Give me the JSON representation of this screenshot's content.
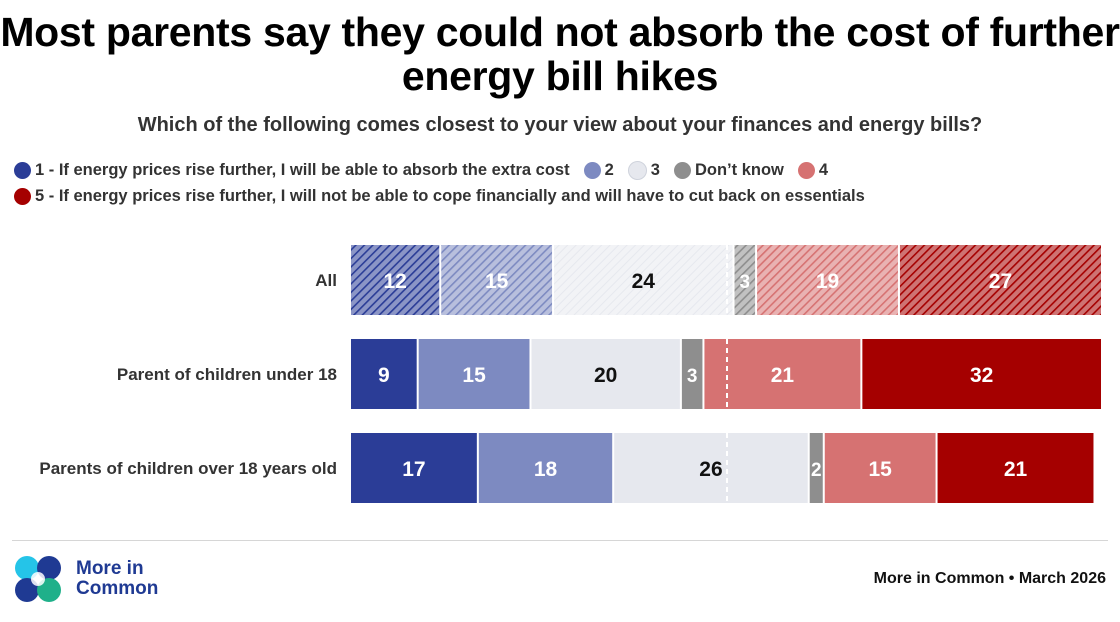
{
  "title": "Most parents say they could not absorb the cost of further energy bill hikes",
  "subtitle": "Which of the following comes closest to your view about your finances and energy bills?",
  "legend": [
    {
      "label": "1 - If energy prices rise further, I will be able to absorb the extra cost",
      "color": "#2b3d97"
    },
    {
      "label": "2",
      "color": "#7d8ac1"
    },
    {
      "label": "3",
      "color": "#e6e8ee"
    },
    {
      "label": "Don’t know",
      "color": "#8e8e8e"
    },
    {
      "label": "4",
      "color": "#d67272"
    },
    {
      "label": "5 - If energy prices rise further, I will not be able to cope financially and will have to cut back on essentials",
      "color": "#a50000"
    }
  ],
  "chart_data": {
    "type": "bar",
    "orientation": "horizontal",
    "stacked": true,
    "categories": [
      "All",
      "Parent of children under 18",
      "Parents of children over 18 years old"
    ],
    "series": [
      {
        "name": "1 - If energy prices rise further, I will be able to absorb the extra cost",
        "values": [
          12,
          9,
          17
        ],
        "color": "#2b3d97"
      },
      {
        "name": "2",
        "values": [
          15,
          15,
          18
        ],
        "color": "#7d8ac1"
      },
      {
        "name": "3",
        "values": [
          24,
          20,
          26
        ],
        "color": "#e6e8ee"
      },
      {
        "name": "Don’t know",
        "values": [
          3,
          3,
          2
        ],
        "color": "#8e8e8e"
      },
      {
        "name": "4",
        "values": [
          19,
          21,
          15
        ],
        "color": "#d67272"
      },
      {
        "name": "5 - If energy prices rise further, I will not be able to cope financially and will have to cut back on essentials",
        "values": [
          27,
          32,
          21
        ],
        "color": "#a50000"
      }
    ],
    "hatched_categories": [
      "All"
    ],
    "midpoint_marker": 50,
    "xlim": [
      0,
      100
    ],
    "legend_position": "top-left",
    "grid": false
  },
  "footer": {
    "logo_text_line1": "More in",
    "logo_text_line2": "Common",
    "source": "More in Common • March 2026"
  }
}
